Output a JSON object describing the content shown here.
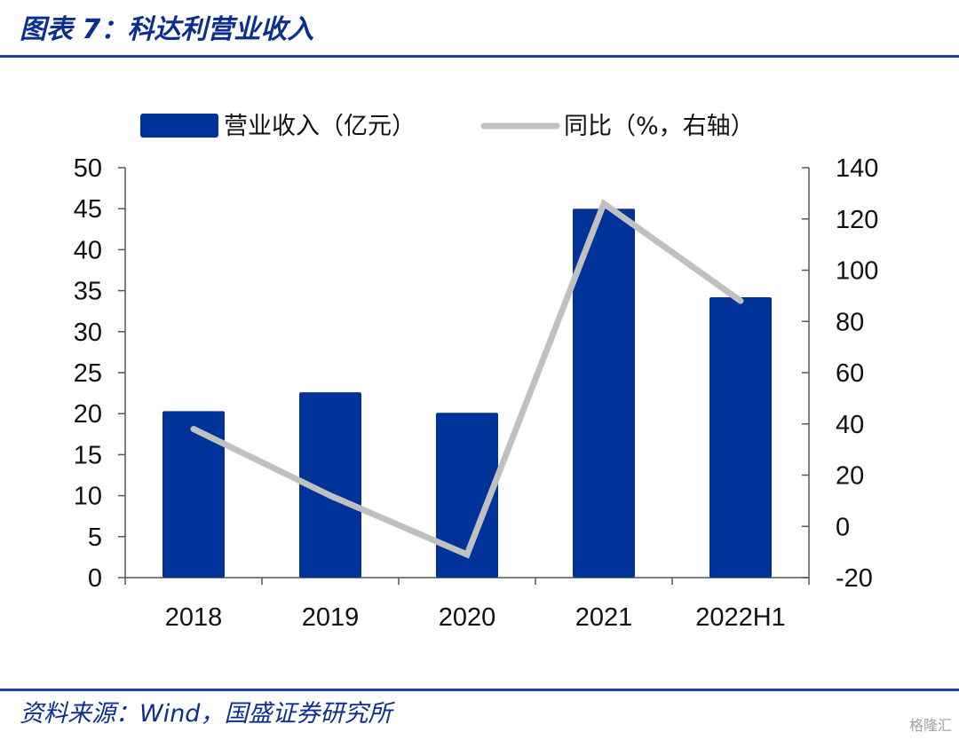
{
  "header": {
    "title": "图表 7：科达利营业收入"
  },
  "footer": {
    "source": "资料来源：Wind，国盛证券研究所",
    "watermark": "格隆汇"
  },
  "colors": {
    "bar": "#003399",
    "line": "#c0c0c0",
    "accent": "#1f3f9a"
  },
  "chart_data": {
    "type": "bar",
    "categories": [
      "2018",
      "2019",
      "2020",
      "2021",
      "2022H1"
    ],
    "series": [
      {
        "name": "营业收入（亿元）",
        "type": "bar",
        "axis": "left",
        "values": [
          20.3,
          22.6,
          20.1,
          45.0,
          34.2
        ]
      },
      {
        "name": "同比（%，右轴）",
        "type": "line",
        "axis": "right",
        "values": [
          38,
          12,
          -11,
          126,
          88
        ]
      }
    ],
    "ylim_left": [
      0,
      50
    ],
    "yticks_left": [
      "50",
      "45",
      "40",
      "35",
      "30",
      "25",
      "20",
      "15",
      "10",
      "5",
      "0"
    ],
    "ylim_right": [
      -20,
      140
    ],
    "yticks_right": [
      "140",
      "120",
      "100",
      "80",
      "60",
      "40",
      "20",
      "0",
      "-20"
    ],
    "legend_position": "top",
    "grid": false
  }
}
